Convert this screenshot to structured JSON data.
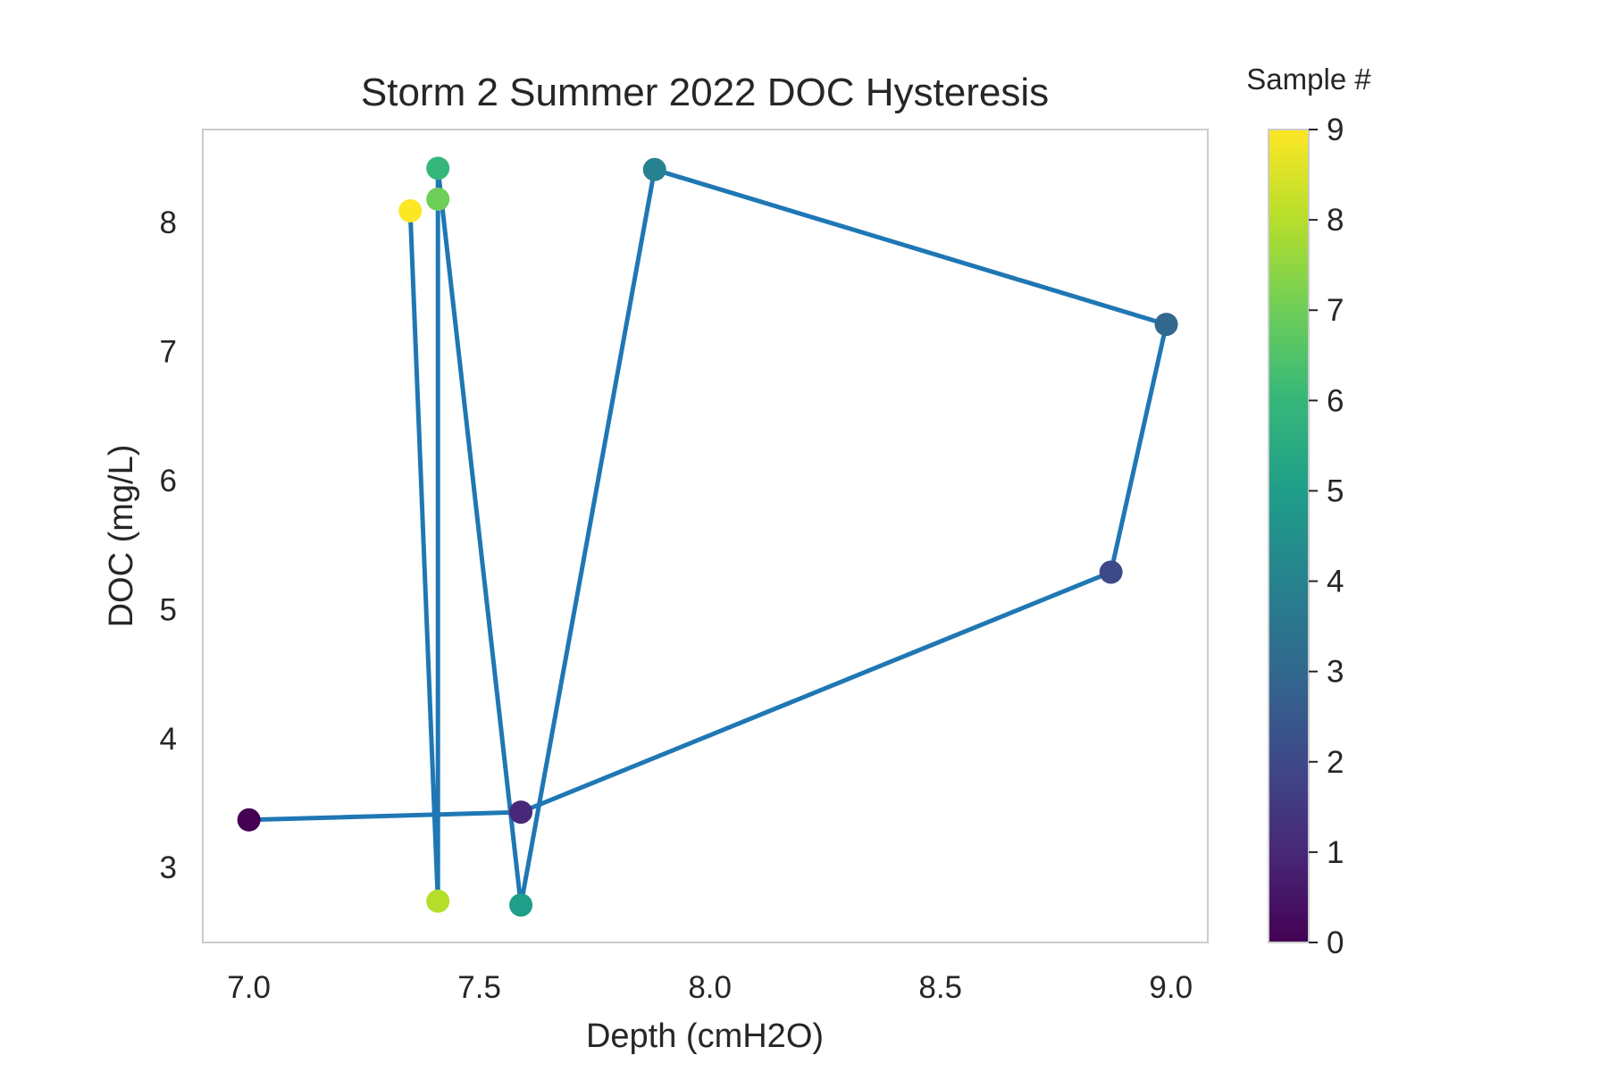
{
  "chart_data": {
    "type": "line",
    "title": "Storm 2 Summer 2022 DOC Hysteresis",
    "xlabel": "Depth (cmH2O)",
    "ylabel": "DOC (mg/L)",
    "xlim": [
      6.9,
      9.08
    ],
    "ylim": [
      2.42,
      8.72
    ],
    "xticks": [
      7.0,
      7.5,
      8.0,
      8.5,
      9.0
    ],
    "xtick_labels": [
      "7.0",
      "7.5",
      "8.0",
      "8.5",
      "9.0"
    ],
    "yticks": [
      3,
      4,
      5,
      6,
      7,
      8
    ],
    "ytick_labels": [
      "3",
      "4",
      "5",
      "6",
      "7",
      "8"
    ],
    "grid": false,
    "line_color": "#1f77b4",
    "points": [
      {
        "sample": 0,
        "x": 7.0,
        "y": 3.37
      },
      {
        "sample": 1,
        "x": 7.59,
        "y": 3.43
      },
      {
        "sample": 2,
        "x": 8.87,
        "y": 5.29
      },
      {
        "sample": 3,
        "x": 8.99,
        "y": 7.21
      },
      {
        "sample": 4,
        "x": 7.88,
        "y": 8.41
      },
      {
        "sample": 5,
        "x": 7.59,
        "y": 2.71
      },
      {
        "sample": 6,
        "x": 7.41,
        "y": 8.42
      },
      {
        "sample": 7,
        "x": 7.41,
        "y": 8.18
      },
      {
        "sample": 8,
        "x": 7.41,
        "y": 2.74
      },
      {
        "sample": 9,
        "x": 7.35,
        "y": 8.09
      }
    ],
    "colorbar": {
      "title": "Sample #",
      "colormap": "viridis",
      "range": [
        0,
        9
      ],
      "ticks": [
        0,
        1,
        2,
        3,
        4,
        5,
        6,
        7,
        8,
        9
      ],
      "tick_labels": [
        "0",
        "1",
        "2",
        "3",
        "4",
        "5",
        "6",
        "7",
        "8",
        "9"
      ]
    }
  }
}
